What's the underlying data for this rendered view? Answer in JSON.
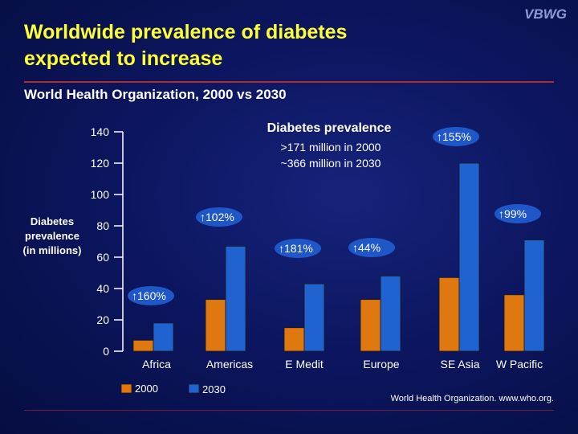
{
  "logo": "VBWG",
  "title_line1": "Worldwide prevalence of diabetes",
  "title_line2": "expected to increase",
  "subtitle": "World Health Organization, 2000 vs 2030",
  "source": "World Health Organization. www.who.org.",
  "colors": {
    "title": "#ffff33",
    "series_2000": "#e07810",
    "series_2030": "#1f62d0",
    "badge": "#1f57c8",
    "rule": "#b22a2a"
  },
  "chart_data": {
    "type": "bar",
    "title": "Diabetes prevalence",
    "notes": [
      ">171 million in 2000",
      "~366 million in 2030"
    ],
    "ylabel": [
      "Diabetes",
      "prevalence",
      "(in millions)"
    ],
    "categories": [
      "Africa",
      "Americas",
      "E Medit",
      "Europe",
      "SE Asia",
      "W Pacific"
    ],
    "series": [
      {
        "name": "2000",
        "values": [
          7,
          33,
          15,
          33,
          47,
          36
        ]
      },
      {
        "name": "2030",
        "values": [
          18,
          67,
          43,
          48,
          120,
          71
        ]
      }
    ],
    "increase_labels": [
      "160%",
      "102%",
      "181%",
      "44%",
      "155%",
      "99%"
    ],
    "ylim": [
      0,
      140
    ],
    "yticks": [
      0,
      20,
      40,
      60,
      80,
      100,
      120,
      140
    ],
    "legend": "bottom-left",
    "grid": false
  }
}
